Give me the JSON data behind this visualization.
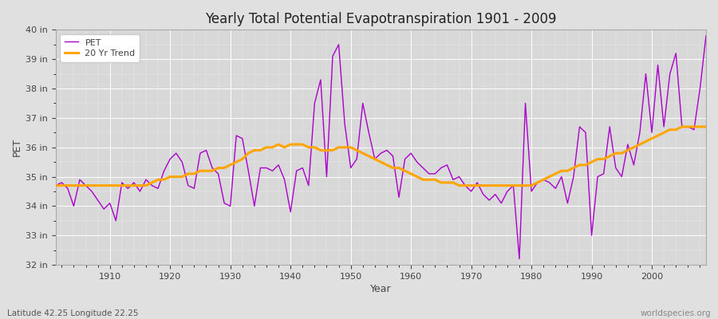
{
  "title": "Yearly Total Potential Evapotranspiration 1901 - 2009",
  "xlabel": "Year",
  "ylabel": "PET",
  "subtitle_left": "Latitude 42.25 Longitude 22.25",
  "subtitle_right": "worldspecies.org",
  "pet_color": "#AA00CC",
  "trend_color": "#FFA500",
  "bg_color": "#E0E0E0",
  "plot_bg_color": "#D8D8D8",
  "ylim": [
    32,
    40
  ],
  "yticks": [
    32,
    33,
    34,
    35,
    36,
    37,
    38,
    39,
    40
  ],
  "ytick_labels": [
    "32 in",
    "33 in",
    "34 in",
    "35 in",
    "36 in",
    "37 in",
    "38 in",
    "39 in",
    "40 in"
  ],
  "xlim": [
    1901,
    2009
  ],
  "xticks": [
    1910,
    1920,
    1930,
    1940,
    1950,
    1960,
    1970,
    1980,
    1990,
    2000
  ],
  "years": [
    1901,
    1902,
    1903,
    1904,
    1905,
    1906,
    1907,
    1908,
    1909,
    1910,
    1911,
    1912,
    1913,
    1914,
    1915,
    1916,
    1917,
    1918,
    1919,
    1920,
    1921,
    1922,
    1923,
    1924,
    1925,
    1926,
    1927,
    1928,
    1929,
    1930,
    1931,
    1932,
    1933,
    1934,
    1935,
    1936,
    1937,
    1938,
    1939,
    1940,
    1941,
    1942,
    1943,
    1944,
    1945,
    1946,
    1947,
    1948,
    1949,
    1950,
    1951,
    1952,
    1953,
    1954,
    1955,
    1956,
    1957,
    1958,
    1959,
    1960,
    1961,
    1962,
    1963,
    1964,
    1965,
    1966,
    1967,
    1968,
    1969,
    1970,
    1971,
    1972,
    1973,
    1974,
    1975,
    1976,
    1977,
    1978,
    1979,
    1980,
    1981,
    1982,
    1983,
    1984,
    1985,
    1986,
    1987,
    1988,
    1989,
    1990,
    1991,
    1992,
    1993,
    1994,
    1995,
    1996,
    1997,
    1998,
    1999,
    2000,
    2001,
    2002,
    2003,
    2004,
    2005,
    2006,
    2007,
    2008,
    2009
  ],
  "pet_values": [
    34.7,
    34.8,
    34.6,
    34.0,
    34.9,
    34.7,
    34.5,
    34.2,
    33.9,
    34.1,
    33.5,
    34.8,
    34.6,
    34.8,
    34.5,
    34.9,
    34.7,
    34.6,
    35.2,
    35.6,
    35.8,
    35.5,
    34.7,
    34.6,
    35.8,
    35.9,
    35.3,
    35.1,
    34.1,
    34.0,
    36.4,
    36.3,
    35.2,
    34.0,
    35.3,
    35.3,
    35.2,
    35.4,
    34.9,
    33.8,
    35.2,
    35.3,
    34.7,
    37.5,
    38.3,
    35.0,
    39.1,
    39.5,
    36.8,
    35.3,
    35.6,
    37.5,
    36.5,
    35.6,
    35.8,
    35.9,
    35.7,
    34.3,
    35.6,
    35.8,
    35.5,
    35.3,
    35.1,
    35.1,
    35.3,
    35.4,
    34.9,
    35.0,
    34.7,
    34.5,
    34.8,
    34.4,
    34.2,
    34.4,
    34.1,
    34.5,
    34.7,
    32.2,
    37.5,
    34.5,
    34.8,
    34.9,
    34.8,
    34.6,
    35.0,
    34.1,
    35.0,
    36.7,
    36.5,
    33.0,
    35.0,
    35.1,
    36.7,
    35.3,
    35.0,
    36.1,
    35.4,
    36.5,
    38.5,
    36.5,
    38.8,
    36.7,
    38.5,
    39.2,
    36.7,
    36.7,
    36.6,
    38.0,
    39.8
  ],
  "trend_years": [
    1901,
    1902,
    1903,
    1904,
    1905,
    1906,
    1907,
    1908,
    1909,
    1910,
    1911,
    1912,
    1913,
    1914,
    1915,
    1916,
    1917,
    1918,
    1919,
    1920,
    1921,
    1922,
    1923,
    1924,
    1925,
    1926,
    1927,
    1928,
    1929,
    1930,
    1931,
    1932,
    1933,
    1934,
    1935,
    1936,
    1937,
    1938,
    1939,
    1940,
    1941,
    1942,
    1943,
    1944,
    1945,
    1946,
    1947,
    1948,
    1949,
    1950,
    1951,
    1952,
    1953,
    1954,
    1955,
    1956,
    1957,
    1958,
    1959,
    1960,
    1961,
    1962,
    1963,
    1964,
    1965,
    1966,
    1967,
    1968,
    1969,
    1970,
    1971,
    1972,
    1973,
    1974,
    1975,
    1976,
    1977,
    1978,
    1979,
    1980,
    1981,
    1982,
    1983,
    1984,
    1985,
    1986,
    1987,
    1988,
    1989,
    1990,
    1991,
    1992,
    1993,
    1994,
    1995,
    1996,
    1997,
    1998,
    1999,
    2000,
    2001,
    2002,
    2003,
    2004,
    2005,
    2006,
    2007,
    2008,
    2009
  ],
  "trend_values": [
    34.7,
    34.7,
    34.7,
    34.7,
    34.7,
    34.7,
    34.7,
    34.7,
    34.7,
    34.7,
    34.7,
    34.7,
    34.7,
    34.7,
    34.7,
    34.7,
    34.8,
    34.9,
    34.9,
    35.0,
    35.0,
    35.0,
    35.1,
    35.1,
    35.2,
    35.2,
    35.2,
    35.3,
    35.3,
    35.4,
    35.5,
    35.6,
    35.8,
    35.9,
    35.9,
    36.0,
    36.0,
    36.1,
    36.0,
    36.1,
    36.1,
    36.1,
    36.0,
    36.0,
    35.9,
    35.9,
    35.9,
    36.0,
    36.0,
    36.0,
    35.9,
    35.8,
    35.7,
    35.6,
    35.5,
    35.4,
    35.3,
    35.3,
    35.2,
    35.1,
    35.0,
    34.9,
    34.9,
    34.9,
    34.8,
    34.8,
    34.8,
    34.7,
    34.7,
    34.7,
    34.7,
    34.7,
    34.7,
    34.7,
    34.7,
    34.7,
    34.7,
    34.7,
    34.7,
    34.7,
    34.8,
    34.9,
    35.0,
    35.1,
    35.2,
    35.2,
    35.3,
    35.4,
    35.4,
    35.5,
    35.6,
    35.6,
    35.7,
    35.8,
    35.8,
    35.9,
    36.0,
    36.1,
    36.2,
    36.3,
    36.4,
    36.5,
    36.6,
    36.6,
    36.7,
    36.7,
    36.7,
    36.7,
    36.7
  ]
}
